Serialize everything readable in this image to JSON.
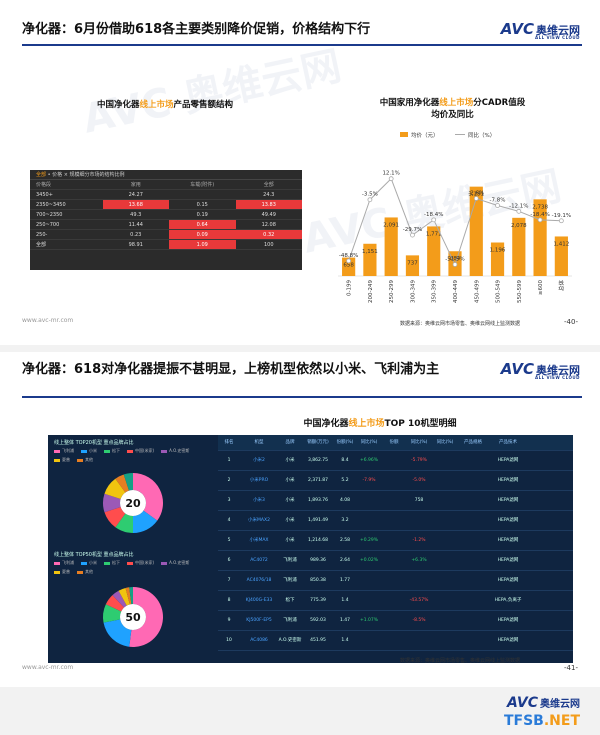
{
  "slide1": {
    "title": "净化器：6月份借助618各主要类别降价促销，价格结构下行",
    "logo": {
      "brand": "AVC",
      "cn": "奥维云网",
      "sub": "ALL VIEW CLOUD"
    },
    "left_chart": {
      "title_pre": "中国净化器",
      "title_hl": "线上市场",
      "title_post": "产品零售额结构",
      "table_header_hl": "全部",
      "table_header": " • 价格 × 规模细分市场的结构比例",
      "columns": [
        "价格段",
        "家用",
        "车载(附件)",
        "全部"
      ],
      "rows": [
        {
          "label": "3450+",
          "c1": "24.27",
          "c2": "",
          "c3": "24.3",
          "r1": false,
          "r2": false,
          "r3": false
        },
        {
          "label": "2350~3450",
          "c1": "13.68",
          "c2": "0.15",
          "c3": "13.83",
          "r1": true,
          "r2": false,
          "r3": true
        },
        {
          "label": "700~2350",
          "c1": "49.3",
          "c2": "0.19",
          "c3": "49.49",
          "r1": false,
          "r2": false,
          "r3": false
        },
        {
          "label": "250~700",
          "c1": "11.44",
          "c2": "0.64",
          "c3": "12.08",
          "r1": false,
          "r2": true,
          "r3": false
        },
        {
          "label": "250-",
          "c1": "0.23",
          "c2": "0.09",
          "c3": "0.32",
          "r1": false,
          "r2": true,
          "r3": true
        },
        {
          "label": "全部",
          "c1": "98.91",
          "c2": "1.09",
          "c3": "100",
          "r1": false,
          "r2": true,
          "r3": false
        }
      ]
    },
    "right_chart_title_pre": "中国家用净化器",
    "right_chart_title_hl": "线上市场",
    "right_chart_title_post": "分CADR值段",
    "right_chart_title_line2": "均价及同比",
    "footer_url": "www.avc-mr.com",
    "source": "数据来源：奥维云网市场零售、奥维云网线上监测数据",
    "page": "-40-"
  },
  "chart_data": {
    "type": "bar",
    "categories": [
      "0-199",
      "200-249",
      "250-299",
      "300-349",
      "350-399",
      "400-449",
      "450-499",
      "500-549",
      "550-599",
      "≥600",
      "总体"
    ],
    "series": [
      {
        "name": "均价（元）",
        "values": [
          658,
          1151,
          2091,
          737,
          1771,
          884,
          3191,
          1196,
          2078,
          2738,
          1412
        ],
        "labels": [
          "658",
          "1,151",
          "2,091",
          "737",
          "1,771",
          "884",
          "3,191",
          "1,196",
          "2,078",
          "2,738",
          "1,412"
        ]
      },
      {
        "name": "同比（%）",
        "values": [
          -48.8,
          -3.5,
          12.1,
          -29.7,
          -18.4,
          -51.5,
          -2.6,
          -7.8,
          -12.1,
          -18.4,
          -19.1
        ],
        "labels": [
          "-48.8%",
          "-3.5%",
          "12.1%",
          "-29.7%",
          "-18.4%",
          "-51.5%",
          "-2.6%",
          "-7.8%",
          "-12.1%",
          "-18.4%",
          "-19.1%"
        ]
      }
    ],
    "colors": {
      "bar": "#f39c1a",
      "line": "#aaaaaa"
    }
  },
  "slide2": {
    "title": "净化器：618对净化器提振不甚明显，上榜机型依然以小米、飞利浦为主",
    "table_title_pre": "中国净化器",
    "table_title_hl": "线上市场",
    "table_title_post": "TOP 10机型明细",
    "panel1_title": "线上整体 TOP20机型 重点品牌占比",
    "panel2_title": "线上整体 TOP50机型 重点品牌占比",
    "legend": [
      {
        "name": "飞利浦",
        "color": "#ff69b4"
      },
      {
        "name": "小米",
        "color": "#1fa2ff"
      },
      {
        "name": "松下",
        "color": "#2ecc71"
      },
      {
        "name": "中国(米家)",
        "color": "#ff4d4d"
      },
      {
        "name": "A.O.史密斯",
        "color": "#9b59b6"
      },
      {
        "name": "夏普",
        "color": "#f1c40f"
      },
      {
        "name": "其他",
        "color": "#e67e22"
      }
    ],
    "donut1": {
      "center": "20",
      "values": [
        7,
        3,
        2,
        2,
        2,
        2,
        1,
        1
      ]
    },
    "donut2": {
      "center": "50",
      "values": [
        26,
        10,
        5,
        3,
        2,
        2,
        1,
        1
      ]
    },
    "table": {
      "columns": [
        "排名",
        "机型",
        "品牌",
        "销额(万元)",
        "份额(%)",
        "同比(%)",
        "份额",
        "同比(%)",
        "同比(%)",
        "产品规格",
        "产品技术"
      ],
      "rows": [
        [
          "1",
          "小米2",
          "小米",
          "3,862.75",
          "8.4",
          "+6.96%",
          "",
          "-5.79%",
          "",
          "",
          "HEPA滤网"
        ],
        [
          "2",
          "小米PRO",
          "小米",
          "2,371.87",
          "5.2",
          "-7.9%",
          "",
          "-5.0%",
          "",
          "",
          "HEPA滤网"
        ],
        [
          "3",
          "小米3",
          "小米",
          "1,893.76",
          "4.08",
          "",
          "",
          "758",
          "",
          "",
          "HEPA滤网"
        ],
        [
          "4",
          "小米MAX2",
          "小米",
          "1,491.49",
          "3.2",
          "",
          "",
          "",
          "",
          "",
          "HEPA滤网"
        ],
        [
          "5",
          "小米MAX",
          "小米",
          "1,214.68",
          "2.58",
          "+0.29%",
          "",
          "-1.2%",
          "",
          "",
          "HEPA滤网"
        ],
        [
          "6",
          "AC4072",
          "飞利浦",
          "989.36",
          "2.64",
          "+0.02%",
          "",
          "+6.3%",
          "",
          "",
          "HEPA滤网"
        ],
        [
          "7",
          "AC4076/18",
          "飞利浦",
          "850.38",
          "1.77",
          "",
          "",
          "",
          "",
          "",
          "HEPA滤网"
        ],
        [
          "8",
          "KJ400G-E33",
          "松下",
          "775.39",
          "1.4",
          "",
          "",
          "-43.57%",
          "",
          "",
          "HEPA,负离子"
        ],
        [
          "9",
          "KJ500F-EP5",
          "飞利浦",
          "592.03",
          "1.47",
          "+1.07%",
          "",
          "-8.5%",
          "",
          "",
          "HEPA滤网"
        ],
        [
          "10",
          "AC4086",
          "A.O.史密斯",
          "451.95",
          "1.4",
          "",
          "",
          "",
          "",
          "",
          "HEPA滤网"
        ]
      ]
    },
    "footer_url": "www.avc-mr.com",
    "source": "数据来源：奥维云网市场零售、奥维云网线上监测数据",
    "page": "-41-"
  },
  "bottom": {
    "logo_brand": "AVC",
    "logo_cn": "奥维云网",
    "site_a": "TFSB",
    "site_b": ".NET"
  },
  "watermark": "AVC 奥维云网"
}
